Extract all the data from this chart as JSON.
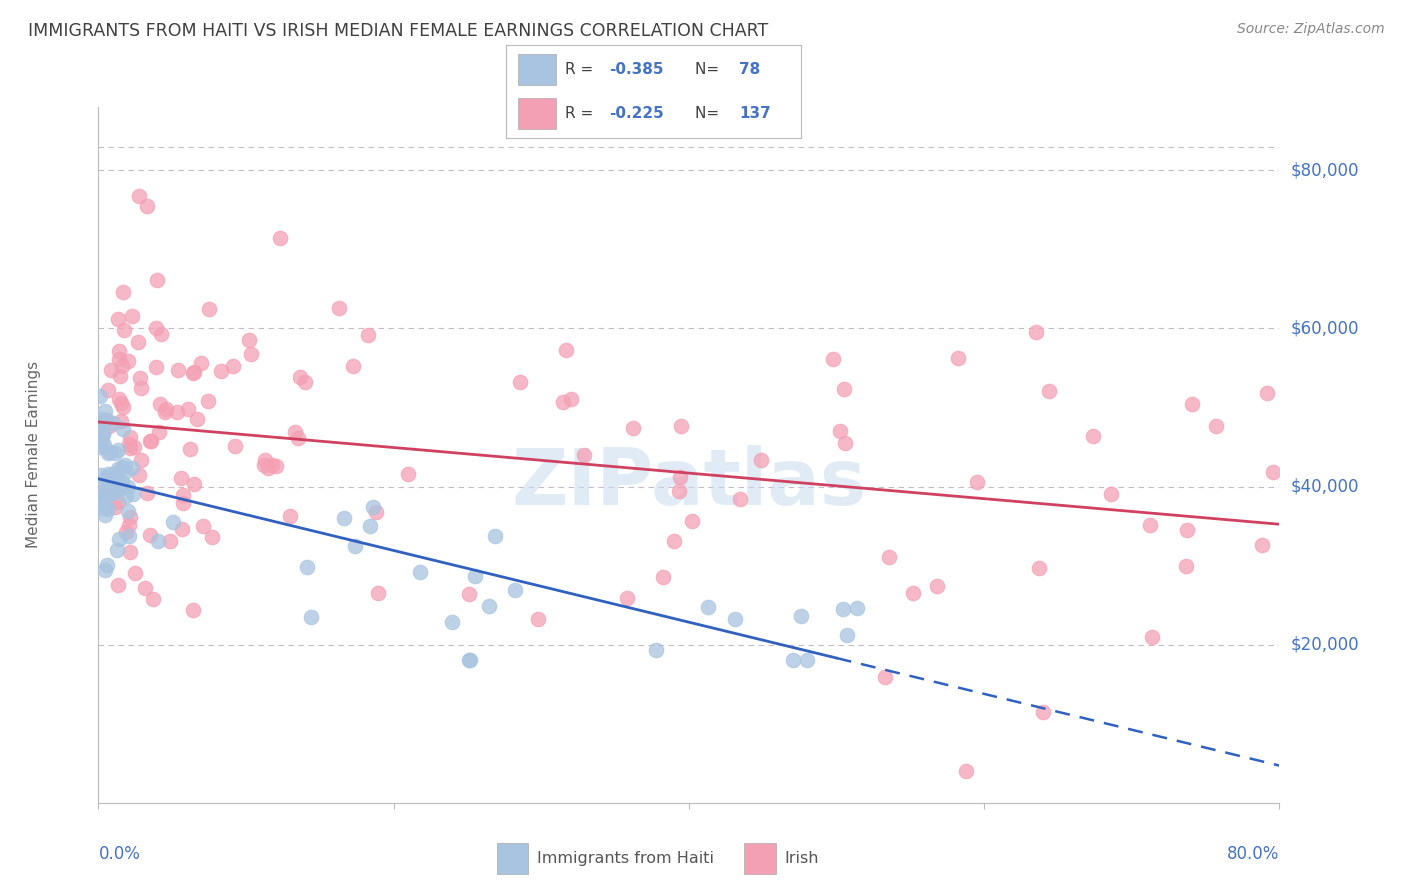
{
  "title": "IMMIGRANTS FROM HAITI VS IRISH MEDIAN FEMALE EARNINGS CORRELATION CHART",
  "source": "Source: ZipAtlas.com",
  "ylabel": "Median Female Earnings",
  "y_ticks": [
    20000,
    40000,
    60000,
    80000
  ],
  "y_tick_labels": [
    "$20,000",
    "$40,000",
    "$60,000",
    "$80,000"
  ],
  "ylim": [
    0,
    88000
  ],
  "xlim": [
    0.0,
    0.8
  ],
  "haiti_R": -0.385,
  "haiti_N": 78,
  "irish_R": -0.225,
  "irish_N": 137,
  "haiti_color": "#a8c4e0",
  "irish_color": "#f4a0b4",
  "haiti_line_color": "#3060c0",
  "irish_line_color": "#d04060",
  "axis_label_color": "#4472c4",
  "title_color": "#404040",
  "grid_color": "#c8b8c8",
  "background_color": "#ffffff",
  "legend_text_color": "#404040",
  "watermark_color": "#c8dcf0",
  "source_color": "#888888"
}
